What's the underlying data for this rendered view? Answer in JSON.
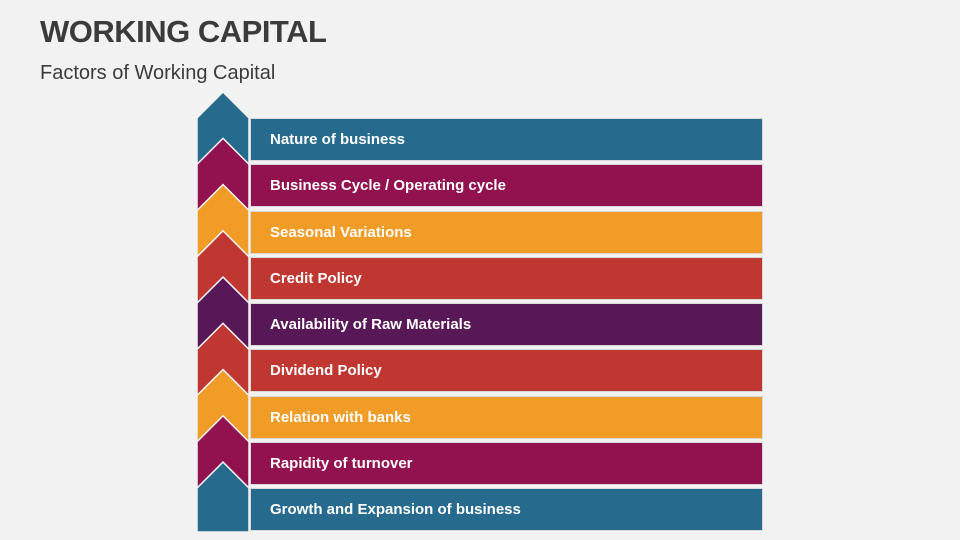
{
  "header": {
    "title": "WORKING CAPITAL",
    "subtitle": "Factors of Working Capital"
  },
  "factors": [
    {
      "label": "Nature of business",
      "color": "#266b8e"
    },
    {
      "label": "Business Cycle / Operating cycle",
      "color": "#92124f"
    },
    {
      "label": "Seasonal Variations",
      "color": "#f19c27"
    },
    {
      "label": "Credit Policy",
      "color": "#bf3730"
    },
    {
      "label": "Availability of Raw Materials",
      "color": "#581857"
    },
    {
      "label": "Dividend Policy",
      "color": "#bf3730"
    },
    {
      "label": "Relation with banks",
      "color": "#f19c27"
    },
    {
      "label": "Rapidity of turnover",
      "color": "#92124f"
    },
    {
      "label": "Growth and Expansion of business",
      "color": "#266b8e"
    }
  ]
}
